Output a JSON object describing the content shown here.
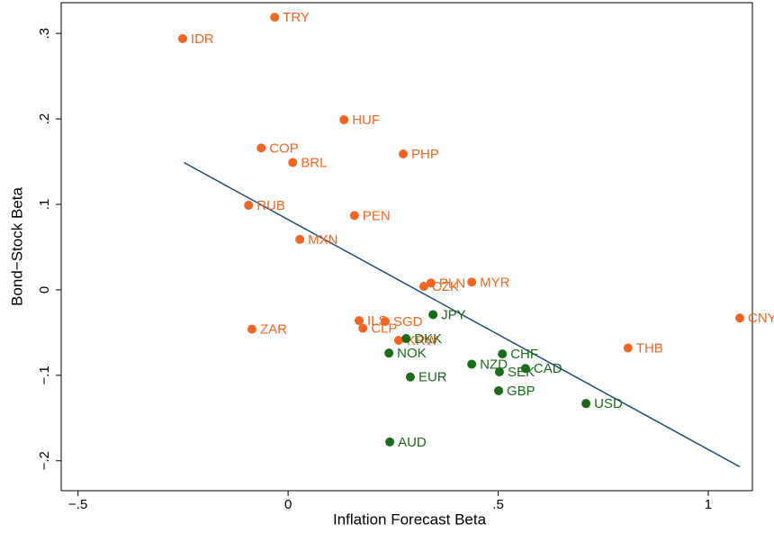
{
  "chart_data": {
    "type": "scatter",
    "x_label": "Inflation Forecast Beta",
    "y_label": "Bond−Stock Beta",
    "xlim": [
      -0.54,
      1.105
    ],
    "ylim": [
      -0.235,
      0.336
    ],
    "xticks": [
      {
        "value": -0.5,
        "label": "−.5"
      },
      0,
      {
        "value": 0.5,
        "label": ".5"
      },
      1
    ],
    "yticks": [
      {
        "value": -0.2,
        "label": "−.2"
      },
      {
        "value": -0.1,
        "label": "−.1"
      },
      0,
      {
        "value": 0.1,
        "label": ".1"
      },
      {
        "value": 0.2,
        "label": ".2"
      },
      {
        "value": 0.3,
        "label": ".3"
      }
    ],
    "series": [
      {
        "color": "#f26522",
        "labels": [
          "TRY",
          "IDR",
          "HUF",
          "COP",
          "PHP",
          "BRL",
          "RUB",
          "PEN",
          "MXN",
          "PLN",
          "CZK",
          "MYR",
          "ILS",
          "SGD",
          "CLP",
          "ZAR",
          "KRW",
          "CNY",
          "THB"
        ],
        "x": [
          -0.032,
          -0.251,
          0.133,
          -0.064,
          0.274,
          0.011,
          -0.094,
          0.158,
          0.028,
          0.34,
          0.323,
          0.437,
          0.169,
          0.231,
          0.178,
          -0.086,
          0.263,
          1.075,
          0.809
        ],
        "values": [
          0.319,
          0.294,
          0.199,
          0.166,
          0.159,
          0.149,
          0.099,
          0.087,
          0.059,
          0.008,
          0.004,
          0.009,
          -0.036,
          -0.037,
          -0.045,
          -0.046,
          -0.059,
          -0.033,
          -0.068
        ]
      },
      {
        "color": "#1a6b1a",
        "labels": [
          "JPY",
          "DKK",
          "NOK",
          "CHF",
          "NZD",
          "SEK",
          "CAD",
          "EUR",
          "GBP",
          "USD",
          "AUD"
        ],
        "x": [
          0.345,
          0.281,
          0.24,
          0.51,
          0.437,
          0.503,
          0.565,
          0.291,
          0.501,
          0.709,
          0.242
        ],
        "values": [
          -0.029,
          -0.057,
          -0.074,
          -0.075,
          -0.087,
          -0.096,
          -0.092,
          -0.102,
          -0.118,
          -0.133,
          -0.178
        ]
      }
    ],
    "fit_line": {
      "color": "#1f4e79",
      "x": [
        -0.248,
        1.075
      ],
      "values": [
        0.149,
        -0.207
      ]
    }
  }
}
